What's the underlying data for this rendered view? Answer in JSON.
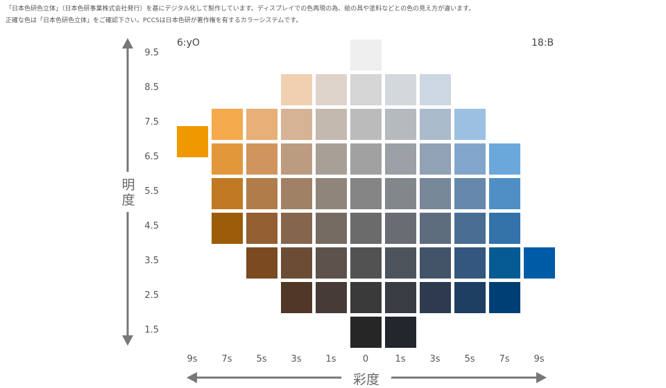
{
  "notes": {
    "line1": "「日本色研色立体」（日本色研事業株式会社発行）を基にデジタル化して製作しています。ディスプレイでの色再現の為、絵の具や塗料などとの色の見え方が違います。",
    "line2": "正確な色は「日本色研色立体」をご確認下さい。PCCSは日本色研が著作権を有するカラーシステムです。"
  },
  "hue_left": "6:yO",
  "hue_right": "18:B",
  "value_axis_title": "明度",
  "chroma_axis_title": "彩度",
  "value_labels": [
    "9.5",
    "8.5",
    "7.5",
    "6.5",
    "5.5",
    "4.5",
    "3.5",
    "2.5",
    "1.5"
  ],
  "chroma_labels": [
    "9s",
    "7s",
    "5s",
    "3s",
    "1s",
    "0",
    "1s",
    "3s",
    "5s",
    "7s",
    "9s"
  ],
  "swatches": [
    {
      "row": 0,
      "col": 5,
      "color": "#efefef"
    },
    {
      "row": 1,
      "col": 3,
      "color": "#f0d0b0"
    },
    {
      "row": 1,
      "col": 4,
      "color": "#ddd3ca"
    },
    {
      "row": 1,
      "col": 5,
      "color": "#d5d5d5"
    },
    {
      "row": 1,
      "col": 6,
      "color": "#d3d8dc"
    },
    {
      "row": 1,
      "col": 7,
      "color": "#cdd7e2"
    },
    {
      "row": 2,
      "col": 1,
      "color": "#f5aa4d"
    },
    {
      "row": 2,
      "col": 2,
      "color": "#e6b078"
    },
    {
      "row": 2,
      "col": 3,
      "color": "#d6b395"
    },
    {
      "row": 2,
      "col": 4,
      "color": "#c4b9ae"
    },
    {
      "row": 2,
      "col": 5,
      "color": "#bbbbbb"
    },
    {
      "row": 2,
      "col": 6,
      "color": "#b5babf"
    },
    {
      "row": 2,
      "col": 7,
      "color": "#aabbcc"
    },
    {
      "row": 2,
      "col": 8,
      "color": "#9cc0e2"
    },
    {
      "row": 2.5,
      "col": 0,
      "color": "#f09800"
    },
    {
      "row": 3,
      "col": 1,
      "color": "#e2973b"
    },
    {
      "row": 3,
      "col": 2,
      "color": "#cf955d"
    },
    {
      "row": 3,
      "col": 3,
      "color": "#bc9c80"
    },
    {
      "row": 3,
      "col": 4,
      "color": "#a89f96"
    },
    {
      "row": 3,
      "col": 5,
      "color": "#a1a1a1"
    },
    {
      "row": 3,
      "col": 6,
      "color": "#9aa0a6"
    },
    {
      "row": 3,
      "col": 7,
      "color": "#90a2b4"
    },
    {
      "row": 3,
      "col": 8,
      "color": "#82a6cb"
    },
    {
      "row": 3,
      "col": 9,
      "color": "#6aa8dc"
    },
    {
      "row": 4,
      "col": 1,
      "color": "#bf7a23"
    },
    {
      "row": 4,
      "col": 2,
      "color": "#b07c4a"
    },
    {
      "row": 4,
      "col": 3,
      "color": "#a08165"
    },
    {
      "row": 4,
      "col": 4,
      "color": "#8f857b"
    },
    {
      "row": 4,
      "col": 5,
      "color": "#858585"
    },
    {
      "row": 4,
      "col": 6,
      "color": "#82878c"
    },
    {
      "row": 4,
      "col": 7,
      "color": "#778899"
    },
    {
      "row": 4,
      "col": 8,
      "color": "#6688ad"
    },
    {
      "row": 4,
      "col": 9,
      "color": "#4f8fc4"
    },
    {
      "row": 5,
      "col": 1,
      "color": "#9d5c07"
    },
    {
      "row": 5,
      "col": 2,
      "color": "#935f33"
    },
    {
      "row": 5,
      "col": 3,
      "color": "#85664c"
    },
    {
      "row": 5,
      "col": 4,
      "color": "#766b62"
    },
    {
      "row": 5,
      "col": 5,
      "color": "#6b6b6b"
    },
    {
      "row": 5,
      "col": 6,
      "color": "#696d73"
    },
    {
      "row": 5,
      "col": 7,
      "color": "#5d6d7e"
    },
    {
      "row": 5,
      "col": 8,
      "color": "#4a6d94"
    },
    {
      "row": 5,
      "col": 9,
      "color": "#3373a9"
    },
    {
      "row": 6,
      "col": 2,
      "color": "#7a4a20"
    },
    {
      "row": 6,
      "col": 3,
      "color": "#6b4d35"
    },
    {
      "row": 6,
      "col": 4,
      "color": "#5d524c"
    },
    {
      "row": 6,
      "col": 5,
      "color": "#525252"
    },
    {
      "row": 6,
      "col": 6,
      "color": "#4e545c"
    },
    {
      "row": 6,
      "col": 7,
      "color": "#435469"
    },
    {
      "row": 6,
      "col": 8,
      "color": "#33577e"
    },
    {
      "row": 6,
      "col": 9,
      "color": "#055b92"
    },
    {
      "row": 6,
      "col": 10,
      "color": "#005ba7"
    },
    {
      "row": 7,
      "col": 3,
      "color": "#503726"
    },
    {
      "row": 7,
      "col": 4,
      "color": "#463b36"
    },
    {
      "row": 7,
      "col": 5,
      "color": "#3a3a3a"
    },
    {
      "row": 7,
      "col": 6,
      "color": "#393c42"
    },
    {
      "row": 7,
      "col": 7,
      "color": "#2e3b4f"
    },
    {
      "row": 7,
      "col": 8,
      "color": "#1e3e62"
    },
    {
      "row": 7,
      "col": 9,
      "color": "#003f74"
    },
    {
      "row": 8,
      "col": 5,
      "color": "#262626"
    },
    {
      "row": 8,
      "col": 6,
      "color": "#23262c"
    }
  ]
}
